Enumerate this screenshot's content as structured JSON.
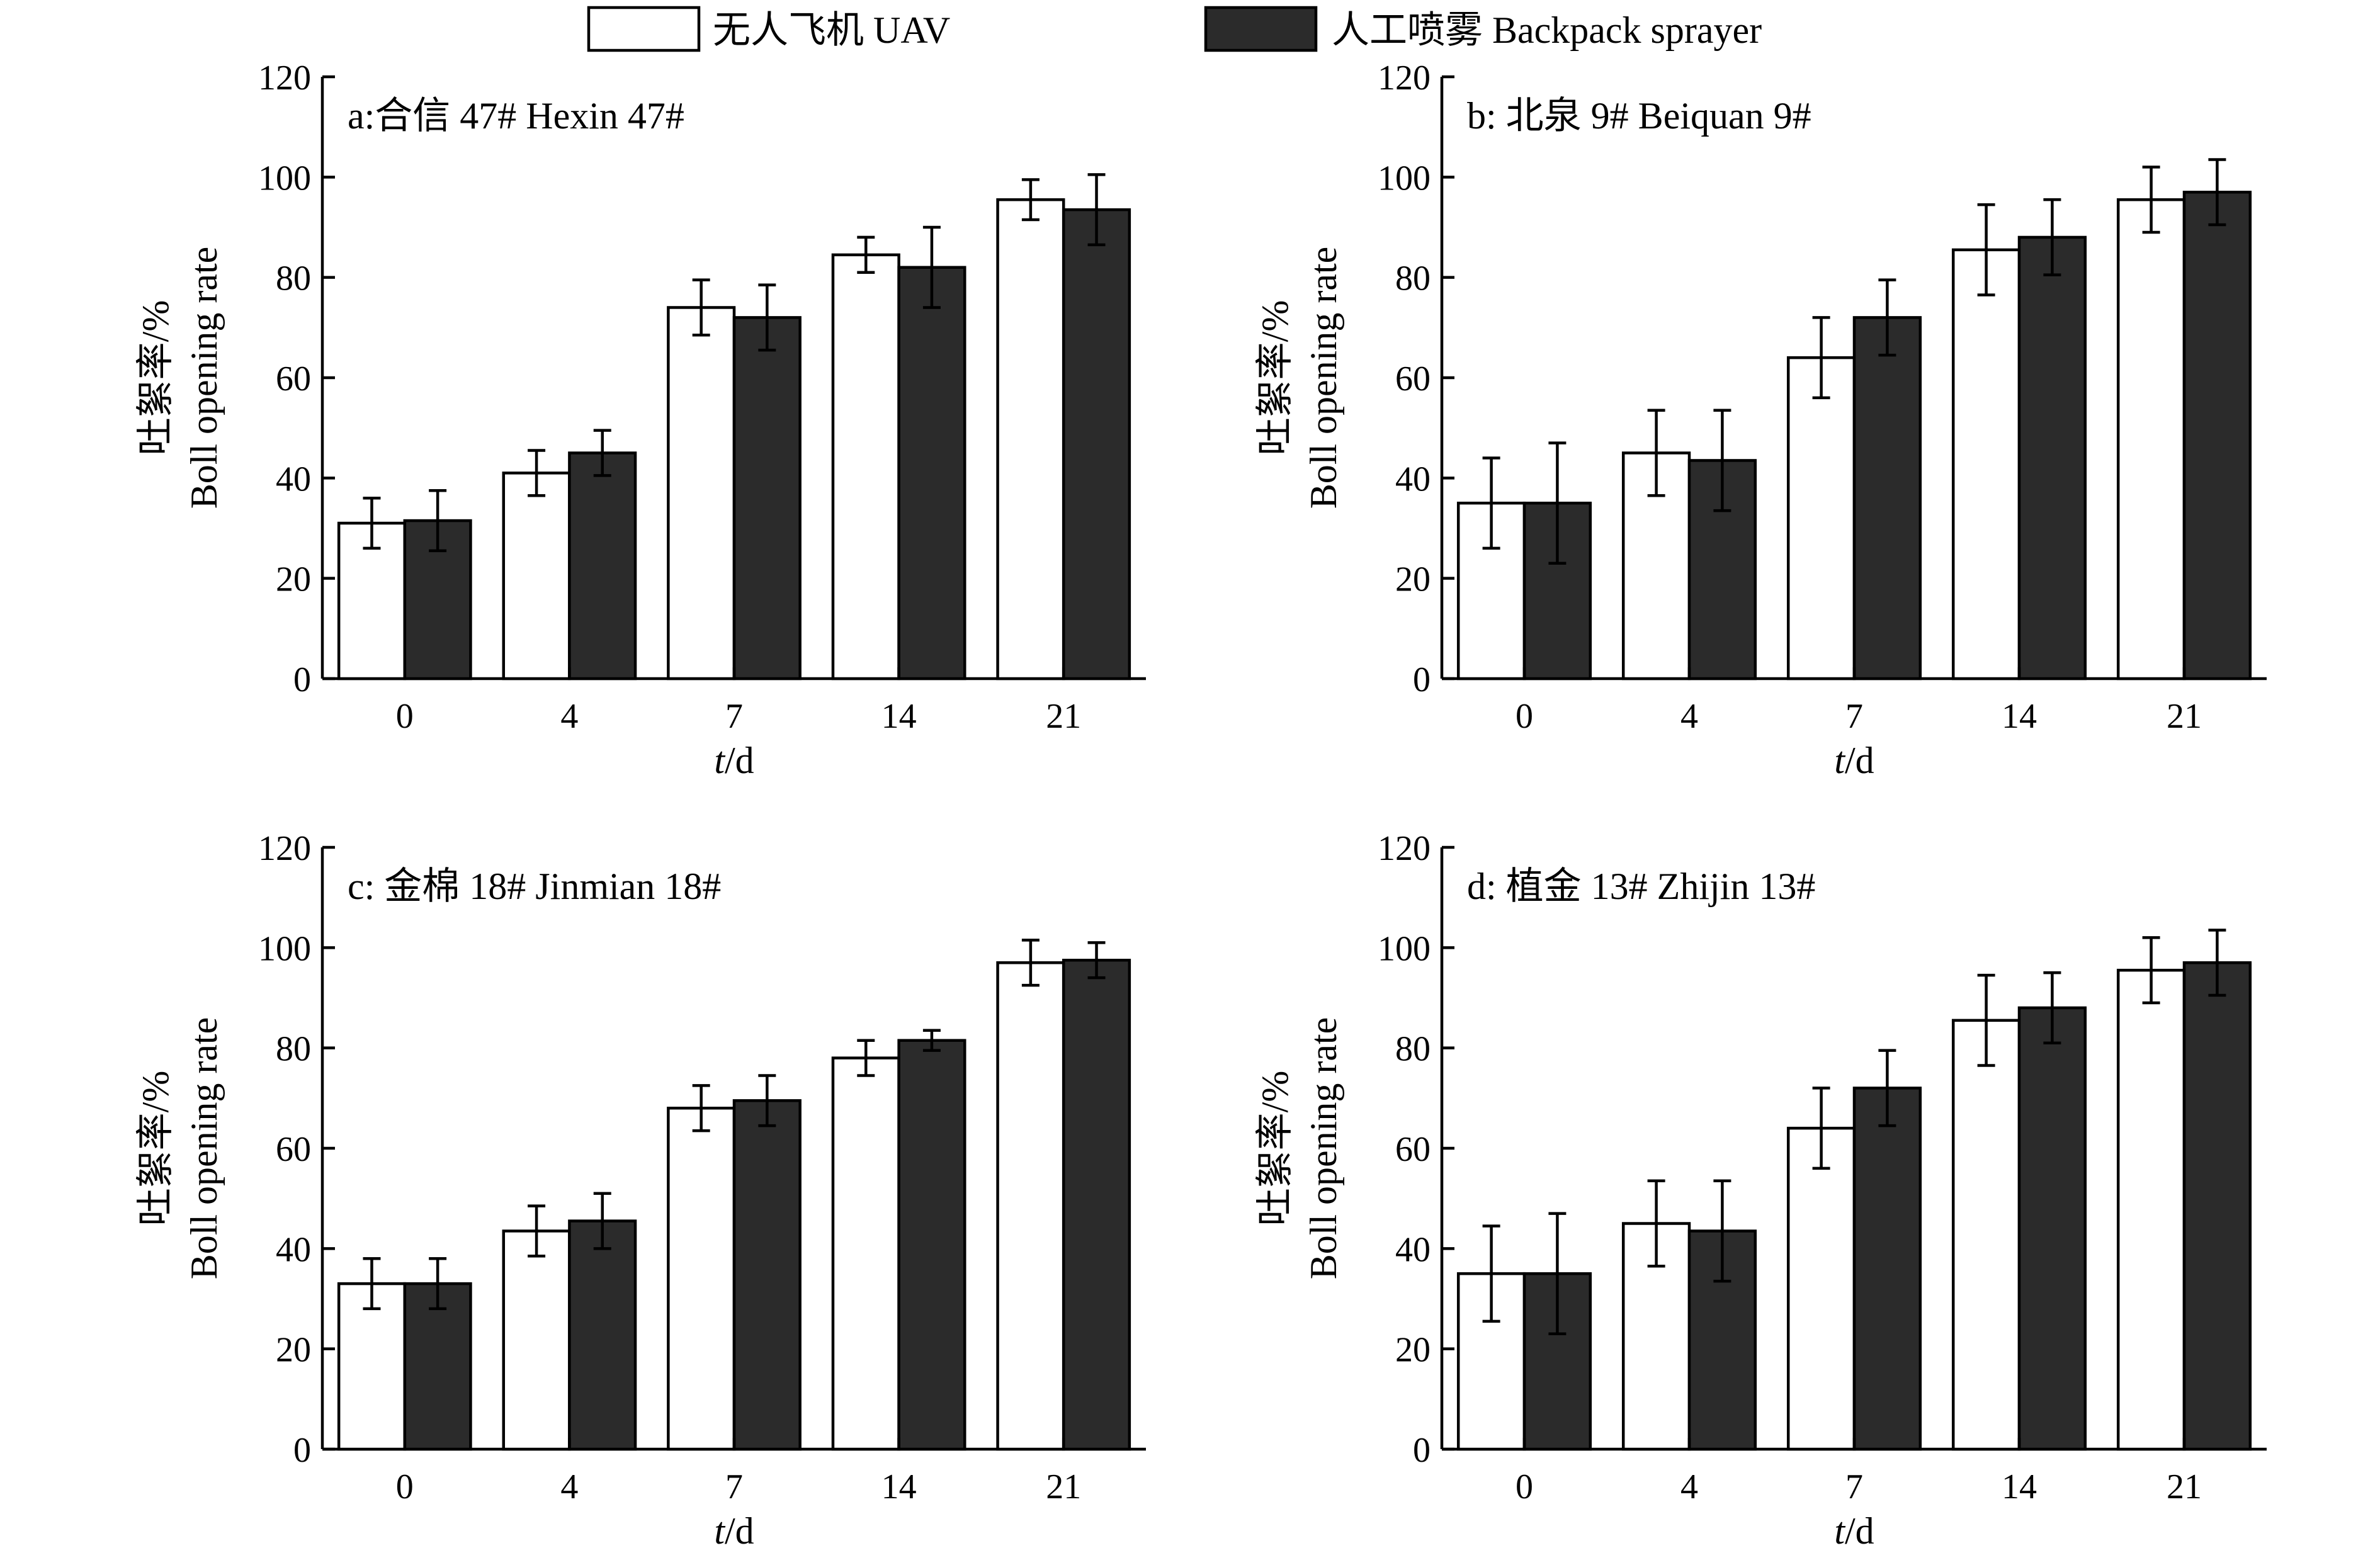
{
  "legend": {
    "uav_label": "无人飞机 UAV",
    "bp_label": "人工喷雾 Backpack sprayer",
    "colors": {
      "uav": "#ffffff",
      "backpack": "#2b2b2b"
    }
  },
  "chart_data": [
    {
      "type": "bar",
      "title": "a:合信 47# Hexin 47#",
      "xlabel_italic": "t",
      "xlabel_rest": "/d",
      "ylabel_line1": "吐絮率/%",
      "ylabel_line2": "Boll opening rate",
      "ylim": [
        0,
        120
      ],
      "yticks": [
        0,
        20,
        40,
        60,
        80,
        100,
        120
      ],
      "categories": [
        "0",
        "4",
        "7",
        "14",
        "21"
      ],
      "series": [
        {
          "name": "无人飞机 UAV",
          "values": [
            31,
            41,
            74,
            84.5,
            95.5
          ],
          "errors": [
            5,
            4.5,
            5.5,
            3.5,
            4
          ]
        },
        {
          "name": "人工喷雾 Backpack sprayer",
          "values": [
            31.5,
            45,
            72,
            82,
            93.5
          ],
          "errors": [
            6,
            4.5,
            6.5,
            8,
            7
          ]
        }
      ]
    },
    {
      "type": "bar",
      "title": "b: 北泉 9# Beiquan 9#",
      "xlabel_italic": "t",
      "xlabel_rest": "/d",
      "ylabel_line1": "吐絮率/%",
      "ylabel_line2": "Boll opening rate",
      "ylim": [
        0,
        120
      ],
      "yticks": [
        0,
        20,
        40,
        60,
        80,
        100,
        120
      ],
      "categories": [
        "0",
        "4",
        "7",
        "14",
        "21"
      ],
      "series": [
        {
          "name": "无人飞机 UAV",
          "values": [
            35,
            45,
            64,
            85.5,
            95.5
          ],
          "errors": [
            9,
            8.5,
            8,
            9,
            6.5
          ]
        },
        {
          "name": "人工喷雾 Backpack sprayer",
          "values": [
            35,
            43.5,
            72,
            88,
            97
          ],
          "errors": [
            12,
            10,
            7.5,
            7.5,
            6.5
          ]
        }
      ]
    },
    {
      "type": "bar",
      "title": "c: 金棉 18# Jinmian 18#",
      "xlabel_italic": "t",
      "xlabel_rest": "/d",
      "ylabel_line1": "吐絮率/%",
      "ylabel_line2": "Boll opening rate",
      "ylim": [
        0,
        120
      ],
      "yticks": [
        0,
        20,
        40,
        60,
        80,
        100,
        120
      ],
      "categories": [
        "0",
        "4",
        "7",
        "14",
        "21"
      ],
      "series": [
        {
          "name": "无人飞机 UAV",
          "values": [
            33,
            43.5,
            68,
            78,
            97
          ],
          "errors": [
            5,
            5,
            4.5,
            3.5,
            4.5
          ]
        },
        {
          "name": "人工喷雾 Backpack sprayer",
          "values": [
            33,
            45.5,
            69.5,
            81.5,
            97.5
          ],
          "errors": [
            5,
            5.5,
            5,
            2,
            3.5
          ]
        }
      ]
    },
    {
      "type": "bar",
      "title": "d: 植金 13# Zhijin 13#",
      "xlabel_italic": "t",
      "xlabel_rest": "/d",
      "ylabel_line1": "吐絮率/%",
      "ylabel_line2": "Boll opening rate",
      "ylim": [
        0,
        120
      ],
      "yticks": [
        0,
        20,
        40,
        60,
        80,
        100,
        120
      ],
      "categories": [
        "0",
        "4",
        "7",
        "14",
        "21"
      ],
      "series": [
        {
          "name": "无人飞机 UAV",
          "values": [
            35,
            45,
            64,
            85.5,
            95.5
          ],
          "errors": [
            9.5,
            8.5,
            8,
            9,
            6.5
          ]
        },
        {
          "name": "人工喷雾 Backpack sprayer",
          "values": [
            35,
            43.5,
            72,
            88,
            97
          ],
          "errors": [
            12,
            10,
            7.5,
            7,
            6.5
          ]
        }
      ]
    }
  ]
}
